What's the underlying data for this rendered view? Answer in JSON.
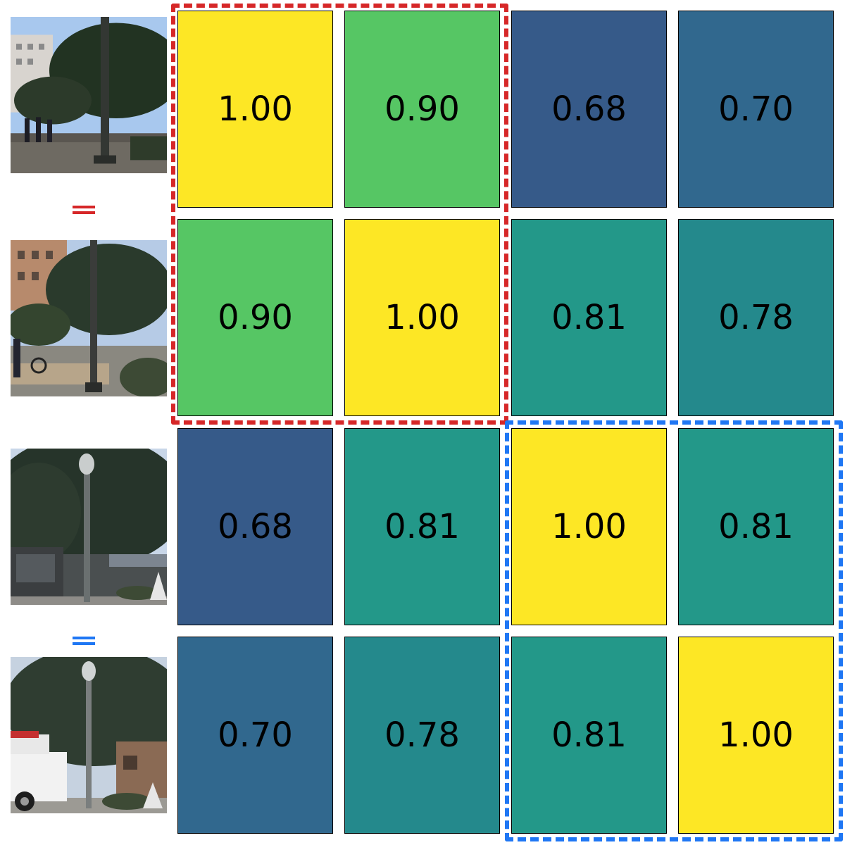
{
  "chart_data": {
    "type": "heatmap",
    "title": "",
    "xlabel": "",
    "ylabel": "",
    "rows": 4,
    "cols": 4,
    "matrix": [
      [
        1.0,
        0.9,
        0.68,
        0.7
      ],
      [
        0.9,
        1.0,
        0.81,
        0.78
      ],
      [
        0.68,
        0.81,
        1.0,
        0.81
      ],
      [
        0.7,
        0.78,
        0.81,
        1.0
      ]
    ],
    "labels": [
      [
        "1.00",
        "0.90",
        "0.68",
        "0.70"
      ],
      [
        "0.90",
        "1.00",
        "0.81",
        "0.78"
      ],
      [
        "0.68",
        "0.81",
        "1.00",
        "0.81"
      ],
      [
        "0.70",
        "0.78",
        "0.81",
        "1.00"
      ]
    ],
    "colormap": "viridis",
    "color_range": [
      0.6,
      1.0
    ],
    "row_images": [
      "street-scene-with-pedestrians",
      "street-scene-with-cyclist",
      "tree-and-lamp-post",
      "lamp-post-with-white-truck"
    ],
    "groups": [
      {
        "rows": [
          0,
          1
        ],
        "cols": [
          0,
          1
        ],
        "color": "#d62728",
        "marker": "="
      },
      {
        "rows": [
          2,
          3
        ],
        "cols": [
          2,
          3
        ],
        "color": "#1f77f4",
        "marker": "="
      }
    ]
  }
}
